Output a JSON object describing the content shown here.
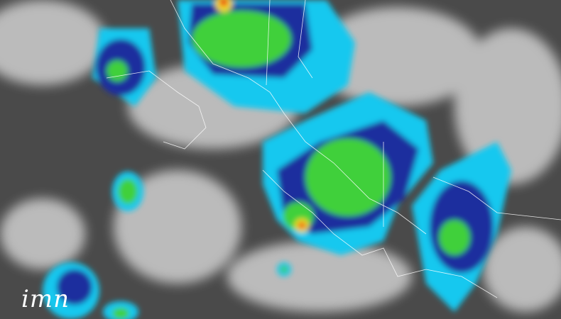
{
  "logo": {
    "text": "imn"
  },
  "colors": {
    "background": "#4a4a4a",
    "cloud": "#d8d8d8",
    "cold_cyan": "#19d3f0",
    "deep_blue": "#1a2f9e",
    "green": "#3fd03a",
    "yellow": "#f4e020",
    "red": "#e8201a",
    "borders": "#ffffff"
  }
}
